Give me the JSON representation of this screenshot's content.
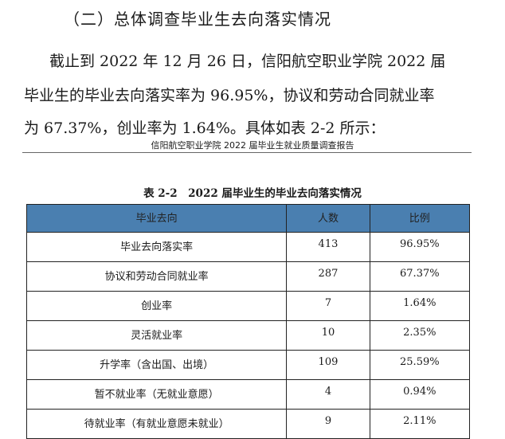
{
  "section_heading": "（二）总体调查毕业生去向落实情况",
  "paragraph": {
    "line1": "截止到 2022 年 12 月 26 日，信阳航空职业学院 2022 届",
    "line2": "毕业生的毕业去向落实率为 96.95%，协议和劳动合同就业率",
    "line3": "为 67.37%，创业率为 1.64%。具体如表 2-2 所示："
  },
  "running_header": "信阳航空职业学院 2022 届毕业生就业质量调查报告",
  "table": {
    "caption": "表 2-2　2022 届毕业生的毕业去向落实情况",
    "header_color": "#4a7fb0",
    "columns": [
      "毕业去向",
      "人数",
      "比例"
    ],
    "rows": [
      {
        "category": "毕业去向落实率",
        "count": "413",
        "ratio": "96.95%"
      },
      {
        "category": "协议和劳动合同就业率",
        "count": "287",
        "ratio": "67.37%"
      },
      {
        "category": "创业率",
        "count": "7",
        "ratio": "1.64%"
      },
      {
        "category": "灵活就业率",
        "count": "10",
        "ratio": "2.35%"
      },
      {
        "category": "升学率（含出国、出境）",
        "count": "109",
        "ratio": "25.59%"
      },
      {
        "category": "暂不就业率（无就业意愿）",
        "count": "4",
        "ratio": "0.94%"
      },
      {
        "category": "待就业率（有就业意愿未就业）",
        "count": "9",
        "ratio": "2.11%"
      }
    ]
  }
}
